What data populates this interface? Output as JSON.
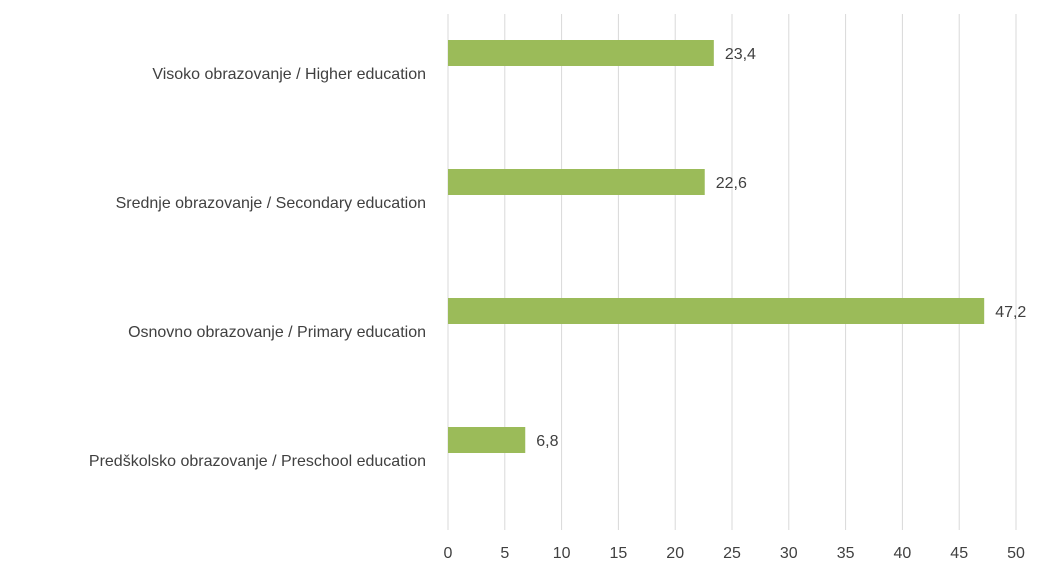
{
  "chart_data": {
    "type": "bar",
    "orientation": "horizontal",
    "categories": [
      "Visoko obrazovanje / Higher education",
      "Srednje obrazovanje / Secondary education",
      "Osnovno obrazovanje / Primary education",
      "Predškolsko obrazovanje / Preschool education"
    ],
    "values": [
      23.4,
      22.6,
      47.2,
      6.8
    ],
    "value_labels": [
      "23,4",
      "22,6",
      "47,2",
      "6,8"
    ],
    "xlim": [
      0,
      50
    ],
    "xticks": [
      0,
      5,
      10,
      15,
      20,
      25,
      30,
      35,
      40,
      45,
      50
    ],
    "xtick_labels": [
      "0",
      "5",
      "10",
      "15",
      "20",
      "25",
      "30",
      "35",
      "40",
      "45",
      "50"
    ],
    "title": "",
    "xlabel": "",
    "ylabel": "",
    "grid": "vertical",
    "legend": "none",
    "colors": {
      "bar": "#9bbb59",
      "grid": "#d9d9d9",
      "text": "#404040"
    }
  }
}
